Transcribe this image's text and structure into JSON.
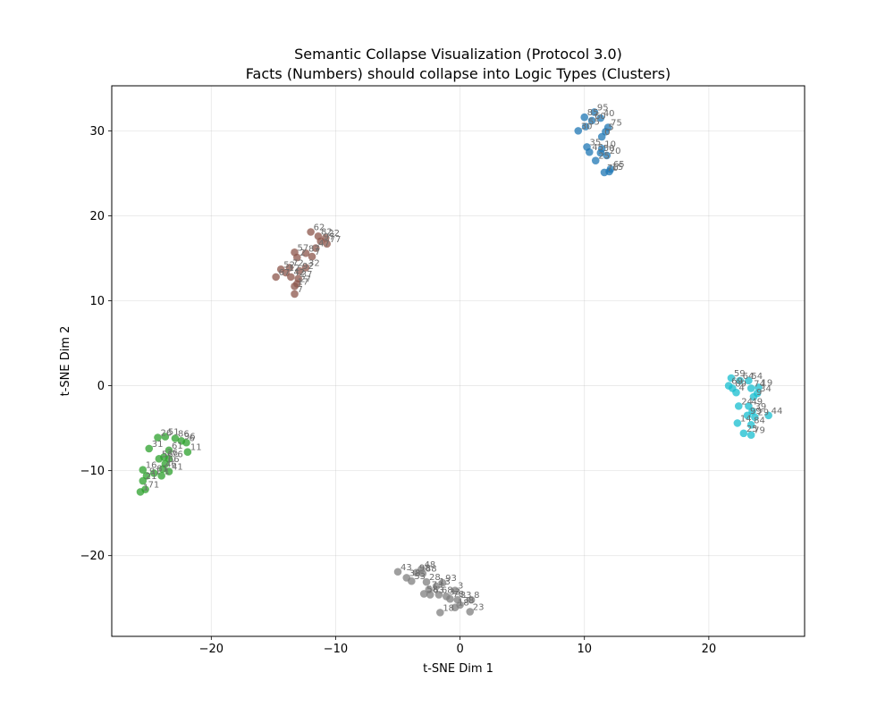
{
  "chart_data": {
    "type": "scatter",
    "title": "Semantic Collapse Visualization (Protocol 3.0)",
    "subtitle": "Facts (Numbers) should collapse into Logic Types (Clusters)",
    "xlabel": "t-SNE Dim 1",
    "ylabel": "t-SNE Dim 2",
    "xlim": [
      -28,
      27.7
    ],
    "ylim": [
      -29.5,
      35.3
    ],
    "xticks": [
      -20,
      -10,
      0,
      10,
      20
    ],
    "yticks": [
      -20,
      -10,
      0,
      10,
      20,
      30
    ],
    "xtick_labels": [
      "−20",
      "−10",
      "0",
      "10",
      "20"
    ],
    "ytick_labels": [
      "−20",
      "−10",
      "0",
      "10",
      "20",
      "30"
    ],
    "grid": true,
    "legend": "none",
    "series": [
      {
        "color": "#1f77b4",
        "points": [
          {
            "x": 10.8,
            "y": 32.2,
            "label": "95"
          },
          {
            "x": 10.0,
            "y": 31.6,
            "label": "85"
          },
          {
            "x": 11.3,
            "y": 31.5,
            "label": "40"
          },
          {
            "x": 10.6,
            "y": 31.2,
            "label": "60"
          },
          {
            "x": 11.9,
            "y": 30.4,
            "label": "75"
          },
          {
            "x": 10.1,
            "y": 30.5,
            "label": "55"
          },
          {
            "x": 9.5,
            "y": 30.0,
            "label": "30"
          },
          {
            "x": 11.7,
            "y": 29.9,
            "label": "5"
          },
          {
            "x": 11.4,
            "y": 29.3,
            "label": "0"
          },
          {
            "x": 10.2,
            "y": 28.1,
            "label": "35"
          },
          {
            "x": 11.4,
            "y": 27.9,
            "label": "10"
          },
          {
            "x": 10.4,
            "y": 27.5,
            "label": "45"
          },
          {
            "x": 11.3,
            "y": 27.4,
            "label": "50"
          },
          {
            "x": 11.8,
            "y": 27.1,
            "label": "20"
          },
          {
            "x": 10.9,
            "y": 26.5,
            "label": "25"
          },
          {
            "x": 12.1,
            "y": 25.5,
            "label": "65"
          },
          {
            "x": 11.6,
            "y": 25.1,
            "label": "70"
          },
          {
            "x": 12.0,
            "y": 25.2,
            "label": "15"
          }
        ]
      },
      {
        "color": "#8c564b",
        "points": [
          {
            "x": -12.0,
            "y": 18.1,
            "label": "62"
          },
          {
            "x": -11.4,
            "y": 17.6,
            "label": "82"
          },
          {
            "x": -10.8,
            "y": 17.4,
            "label": "22"
          },
          {
            "x": -11.2,
            "y": 17.0,
            "label": "97"
          },
          {
            "x": -10.7,
            "y": 16.7,
            "label": "77"
          },
          {
            "x": -11.6,
            "y": 16.2,
            "label": "47"
          },
          {
            "x": -13.3,
            "y": 15.7,
            "label": "57"
          },
          {
            "x": -12.4,
            "y": 15.6,
            "label": "87"
          },
          {
            "x": -13.1,
            "y": 15.1,
            "label": "2"
          },
          {
            "x": -11.9,
            "y": 15.2,
            "label": "7"
          },
          {
            "x": -14.4,
            "y": 13.7,
            "label": "52"
          },
          {
            "x": -13.7,
            "y": 13.9,
            "label": "72"
          },
          {
            "x": -12.4,
            "y": 13.9,
            "label": "32"
          },
          {
            "x": -14.0,
            "y": 13.3,
            "label": "12"
          },
          {
            "x": -12.9,
            "y": 13.5,
            "label": "92"
          },
          {
            "x": -14.8,
            "y": 12.8,
            "label": "67"
          },
          {
            "x": -13.6,
            "y": 12.8,
            "label": "42"
          },
          {
            "x": -13.0,
            "y": 12.6,
            "label": "37"
          },
          {
            "x": -13.1,
            "y": 12.0,
            "label": "27"
          },
          {
            "x": -13.3,
            "y": 11.7,
            "label": "17"
          },
          {
            "x": -13.3,
            "y": 10.8,
            "label": "7"
          }
        ]
      },
      {
        "color": "#17becf",
        "points": [
          {
            "x": 21.8,
            "y": 0.9,
            "label": "59"
          },
          {
            "x": 22.5,
            "y": 0.6,
            "label": "64"
          },
          {
            "x": 23.2,
            "y": 0.6,
            "label": "54"
          },
          {
            "x": 21.6,
            "y": 0.0,
            "label": "69"
          },
          {
            "x": 21.9,
            "y": -0.3,
            "label": "89"
          },
          {
            "x": 23.4,
            "y": -0.3,
            "label": "74"
          },
          {
            "x": 24.0,
            "y": -0.2,
            "label": "19"
          },
          {
            "x": 22.2,
            "y": -0.8,
            "label": "4"
          },
          {
            "x": 23.9,
            "y": -0.9,
            "label": "34"
          },
          {
            "x": 23.6,
            "y": -1.3,
            "label": "9"
          },
          {
            "x": 22.4,
            "y": -2.4,
            "label": "24"
          },
          {
            "x": 23.2,
            "y": -2.4,
            "label": "49"
          },
          {
            "x": 23.5,
            "y": -3.0,
            "label": "39"
          },
          {
            "x": 23.1,
            "y": -3.5,
            "label": "99"
          },
          {
            "x": 23.7,
            "y": -3.7,
            "label": "29"
          },
          {
            "x": 24.8,
            "y": -3.5,
            "label": "44"
          },
          {
            "x": 22.3,
            "y": -4.4,
            "label": "14"
          },
          {
            "x": 23.4,
            "y": -4.6,
            "label": "84"
          },
          {
            "x": 22.8,
            "y": -5.6,
            "label": "25"
          },
          {
            "x": 23.4,
            "y": -5.8,
            "label": "79"
          }
        ]
      },
      {
        "color": "#2ca02c",
        "points": [
          {
            "x": -24.3,
            "y": -6.1,
            "label": "26"
          },
          {
            "x": -23.7,
            "y": -6.0,
            "label": "51"
          },
          {
            "x": -22.9,
            "y": -6.2,
            "label": "86"
          },
          {
            "x": -22.4,
            "y": -6.5,
            "label": "96"
          },
          {
            "x": -22.0,
            "y": -6.7,
            "label": "6"
          },
          {
            "x": -25.0,
            "y": -7.4,
            "label": "31"
          },
          {
            "x": -21.9,
            "y": -7.8,
            "label": "11"
          },
          {
            "x": -23.4,
            "y": -7.6,
            "label": "61"
          },
          {
            "x": -24.2,
            "y": -8.6,
            "label": "56"
          },
          {
            "x": -23.8,
            "y": -8.4,
            "label": "36"
          },
          {
            "x": -23.4,
            "y": -8.6,
            "label": "76"
          },
          {
            "x": -23.7,
            "y": -9.2,
            "label": "66"
          },
          {
            "x": -23.9,
            "y": -9.8,
            "label": "46"
          },
          {
            "x": -23.4,
            "y": -10.1,
            "label": "41"
          },
          {
            "x": -25.5,
            "y": -9.9,
            "label": "16"
          },
          {
            "x": -24.6,
            "y": -10.3,
            "label": "81"
          },
          {
            "x": -25.2,
            "y": -10.6,
            "label": "91"
          },
          {
            "x": -24.0,
            "y": -10.6,
            "label": "1"
          },
          {
            "x": -25.5,
            "y": -11.2,
            "label": "21"
          },
          {
            "x": -25.3,
            "y": -12.2,
            "label": "71"
          },
          {
            "x": -25.7,
            "y": -12.5,
            "label": "1"
          }
        ]
      },
      {
        "color": "#7f7f7f",
        "points": [
          {
            "x": -5.0,
            "y": -21.9,
            "label": "43"
          },
          {
            "x": -3.1,
            "y": -21.6,
            "label": "48"
          },
          {
            "x": -3.5,
            "y": -22.0,
            "label": "98"
          },
          {
            "x": -3.0,
            "y": -22.1,
            "label": "88"
          },
          {
            "x": -4.3,
            "y": -22.6,
            "label": "38"
          },
          {
            "x": -3.9,
            "y": -23.0,
            "label": "53"
          },
          {
            "x": -2.7,
            "y": -23.1,
            "label": "28"
          },
          {
            "x": -1.4,
            "y": -23.2,
            "label": "93"
          },
          {
            "x": -1.9,
            "y": -23.6,
            "label": "13"
          },
          {
            "x": -2.5,
            "y": -24.0,
            "label": "73"
          },
          {
            "x": -0.4,
            "y": -24.1,
            "label": "3"
          },
          {
            "x": -2.9,
            "y": -24.5,
            "label": "58"
          },
          {
            "x": -2.4,
            "y": -24.6,
            "label": "63"
          },
          {
            "x": -1.7,
            "y": -24.6,
            "label": "68"
          },
          {
            "x": -1.1,
            "y": -24.8,
            "label": "33"
          },
          {
            "x": -0.8,
            "y": -25.1,
            "label": "78"
          },
          {
            "x": -0.2,
            "y": -25.2,
            "label": "83"
          },
          {
            "x": 0.9,
            "y": -25.2,
            "label": "8"
          },
          {
            "x": 0.0,
            "y": -25.8,
            "label": "38"
          },
          {
            "x": -0.4,
            "y": -26.1,
            "label": "18"
          },
          {
            "x": 0.8,
            "y": -26.6,
            "label": "23"
          },
          {
            "x": -1.6,
            "y": -26.7,
            "label": "18"
          }
        ]
      }
    ]
  }
}
